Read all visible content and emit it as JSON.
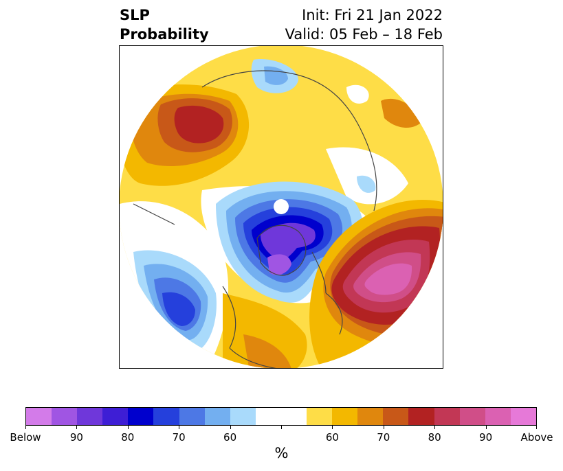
{
  "header": {
    "variable_line1": "SLP",
    "variable_line2": "Probability",
    "init_text": "Init: Fri 21 Jan 2022",
    "valid_text": "Valid: 05 Feb – 18 Feb"
  },
  "colorbar": {
    "unit": "%",
    "colors": [
      "#d37be9",
      "#a055e3",
      "#6f37da",
      "#3e1ed5",
      "#0000cd",
      "#2540dc",
      "#4d78e5",
      "#73aff0",
      "#a9dafb",
      "#ffffff",
      "#ffffff",
      "#fedd47",
      "#f3b800",
      "#e0870d",
      "#c85818",
      "#b22222",
      "#c23755",
      "#d04e88",
      "#db61b2",
      "#e679d8"
    ],
    "tick_labels": [
      "Below",
      "90",
      "80",
      "70",
      "60",
      "",
      "60",
      "70",
      "80",
      "90",
      "Above"
    ]
  },
  "map": {
    "projection": "north-polar-stereographic",
    "features": [
      {
        "name": "below-normal-pressure-arctic-canada",
        "category": "Below",
        "peak_probability": 90
      },
      {
        "name": "below-normal-pressure-north-pacific",
        "category": "Below",
        "peak_probability": 80
      },
      {
        "name": "below-normal-pressure-scandinavia",
        "category": "Below",
        "peak_probability": 60
      },
      {
        "name": "above-normal-pressure-north-atlantic",
        "category": "Above",
        "peak_probability": 90
      },
      {
        "name": "above-normal-pressure-central-asia",
        "category": "Above",
        "peak_probability": 80
      }
    ]
  }
}
